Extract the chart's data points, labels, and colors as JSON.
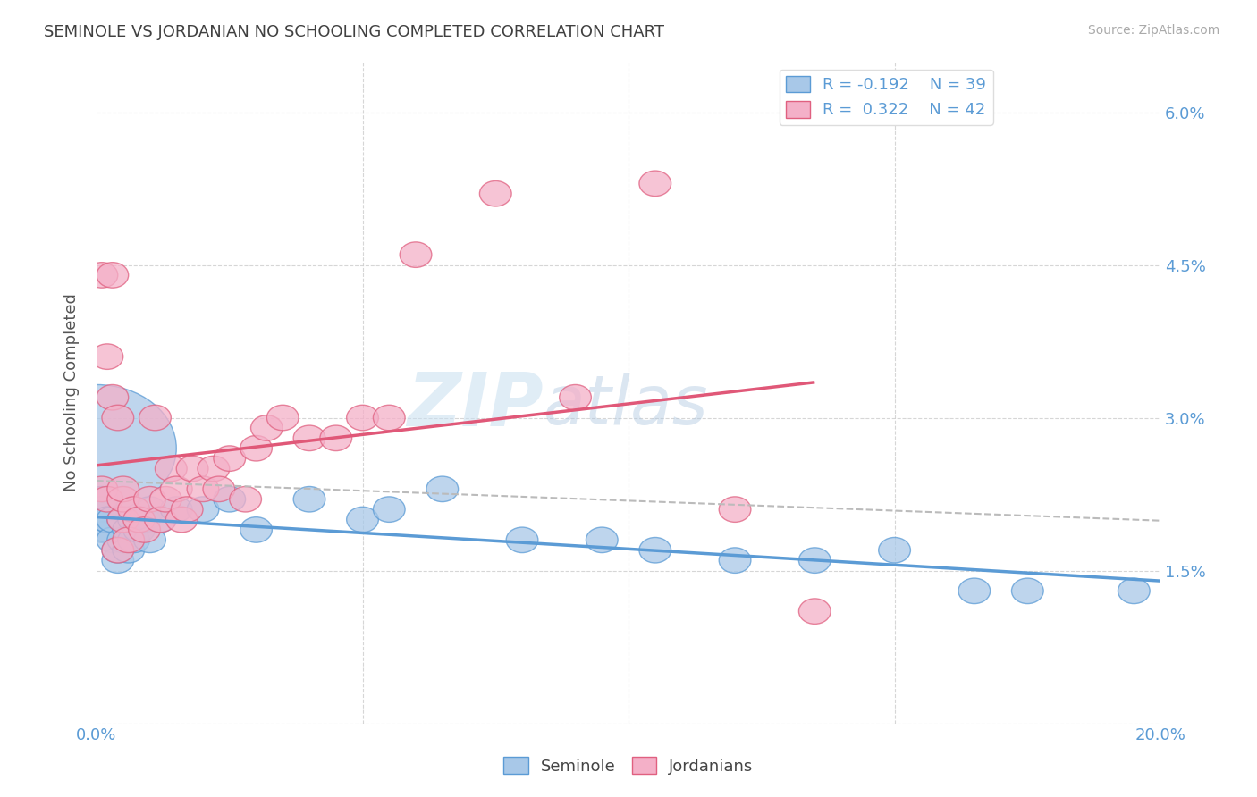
{
  "title": "SEMINOLE VS JORDANIAN NO SCHOOLING COMPLETED CORRELATION CHART",
  "source": "Source: ZipAtlas.com",
  "ylabel": "No Schooling Completed",
  "xlim": [
    0.0,
    0.2
  ],
  "ylim": [
    0.0,
    0.065
  ],
  "seminole_R": -0.192,
  "seminole_N": 39,
  "jordanian_R": 0.322,
  "jordanian_N": 42,
  "seminole_color": "#a8c8e8",
  "jordanian_color": "#f4b0c8",
  "seminole_edge_color": "#5b9bd5",
  "jordanian_edge_color": "#e06080",
  "seminole_line_color": "#5b9bd5",
  "jordanian_line_color": "#e05878",
  "trend_line_color": "#bbbbbb",
  "watermark_zip": "ZIP",
  "watermark_atlas": "atlas",
  "seminole_x": [
    0.0,
    0.001,
    0.001,
    0.001,
    0.002,
    0.002,
    0.002,
    0.003,
    0.003,
    0.004,
    0.004,
    0.005,
    0.005,
    0.006,
    0.006,
    0.007,
    0.007,
    0.008,
    0.009,
    0.01,
    0.01,
    0.012,
    0.015,
    0.02,
    0.025,
    0.03,
    0.04,
    0.05,
    0.055,
    0.065,
    0.08,
    0.095,
    0.105,
    0.12,
    0.135,
    0.15,
    0.165,
    0.175,
    0.195
  ],
  "seminole_y": [
    0.027,
    0.021,
    0.022,
    0.019,
    0.019,
    0.02,
    0.02,
    0.018,
    0.02,
    0.016,
    0.017,
    0.02,
    0.018,
    0.019,
    0.017,
    0.02,
    0.018,
    0.019,
    0.02,
    0.018,
    0.021,
    0.02,
    0.021,
    0.021,
    0.022,
    0.019,
    0.022,
    0.02,
    0.021,
    0.023,
    0.018,
    0.018,
    0.017,
    0.016,
    0.016,
    0.017,
    0.013,
    0.013,
    0.013
  ],
  "seminole_s": [
    400,
    80,
    80,
    80,
    80,
    80,
    80,
    80,
    80,
    80,
    80,
    80,
    80,
    80,
    80,
    80,
    80,
    80,
    80,
    80,
    80,
    80,
    80,
    80,
    80,
    80,
    80,
    80,
    80,
    80,
    80,
    80,
    80,
    80,
    80,
    80,
    80,
    80,
    80
  ],
  "jordanian_x": [
    0.001,
    0.001,
    0.002,
    0.002,
    0.003,
    0.003,
    0.004,
    0.004,
    0.005,
    0.005,
    0.005,
    0.006,
    0.007,
    0.008,
    0.009,
    0.01,
    0.011,
    0.012,
    0.013,
    0.014,
    0.015,
    0.016,
    0.017,
    0.018,
    0.02,
    0.022,
    0.023,
    0.025,
    0.028,
    0.03,
    0.032,
    0.035,
    0.04,
    0.045,
    0.05,
    0.055,
    0.06,
    0.075,
    0.09,
    0.105,
    0.12,
    0.135
  ],
  "jordanian_y": [
    0.044,
    0.023,
    0.022,
    0.036,
    0.044,
    0.032,
    0.017,
    0.03,
    0.02,
    0.022,
    0.023,
    0.018,
    0.021,
    0.02,
    0.019,
    0.022,
    0.03,
    0.02,
    0.022,
    0.025,
    0.023,
    0.02,
    0.021,
    0.025,
    0.023,
    0.025,
    0.023,
    0.026,
    0.022,
    0.027,
    0.029,
    0.03,
    0.028,
    0.028,
    0.03,
    0.03,
    0.046,
    0.052,
    0.032,
    0.053,
    0.021,
    0.011
  ],
  "jordanian_s": [
    80,
    80,
    80,
    80,
    80,
    80,
    80,
    80,
    80,
    80,
    80,
    80,
    80,
    80,
    80,
    80,
    80,
    80,
    80,
    80,
    80,
    80,
    80,
    80,
    80,
    80,
    80,
    80,
    80,
    80,
    80,
    80,
    80,
    80,
    80,
    80,
    80,
    80,
    80,
    80,
    80,
    80
  ]
}
